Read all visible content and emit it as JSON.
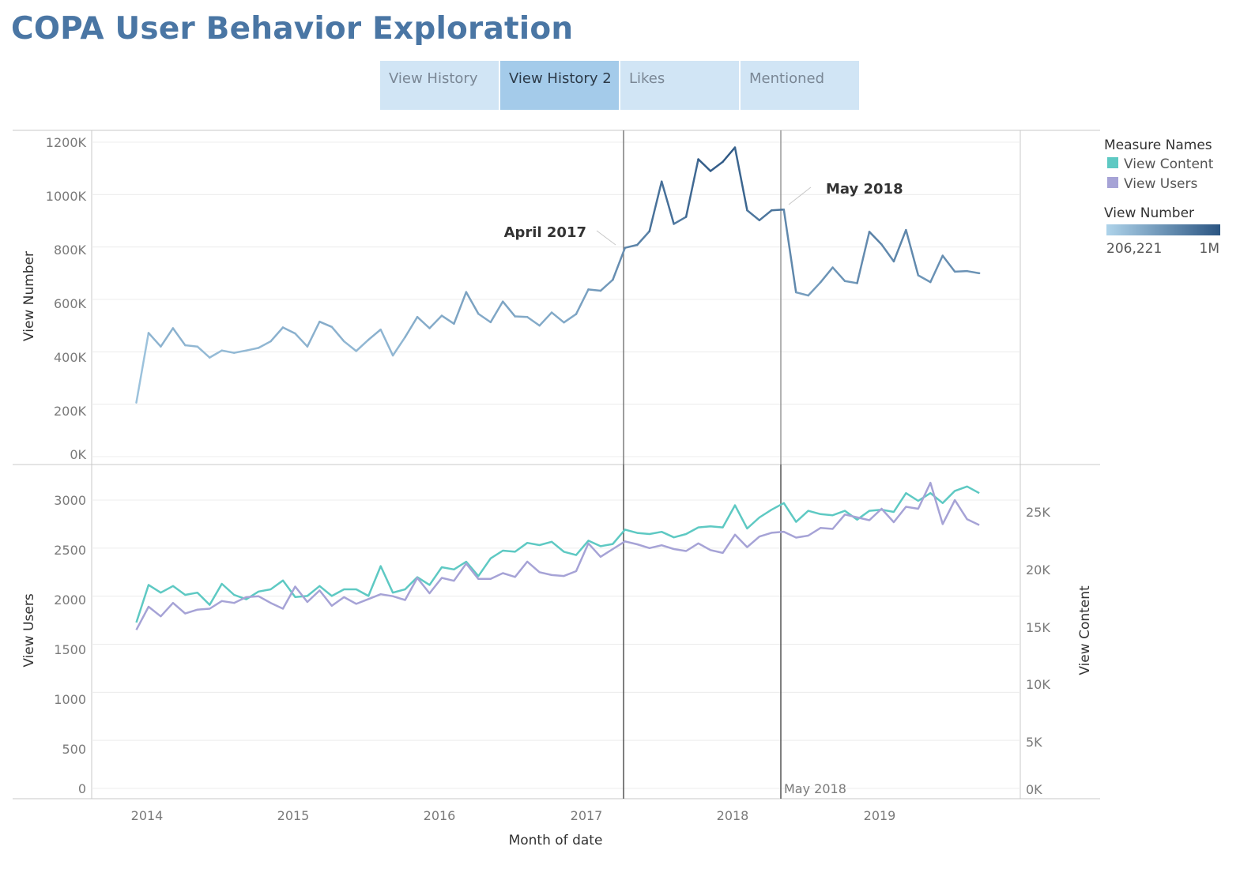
{
  "header": {
    "title": "COPA User Behavior Exploration"
  },
  "tabs": [
    {
      "label": "View History",
      "active": false
    },
    {
      "label": "View History 2",
      "active": true
    },
    {
      "label": "Likes",
      "active": false
    },
    {
      "label": "Mentioned",
      "active": false
    }
  ],
  "colors": {
    "view_content": "#5ec9c3",
    "view_users": "#a6a3d6",
    "low": "#aed3ea",
    "high": "#2b5582"
  },
  "chart_data": [
    {
      "type": "line",
      "ylabel": "View Number",
      "ylim": [
        0,
        1200000
      ],
      "yticks": [
        "1200K",
        "1000K",
        "800K",
        "600K",
        "400K",
        "200K",
        "0K"
      ],
      "x_start": "2013-12",
      "series": [
        {
          "name": "View Number",
          "values": [
            206221,
            472000,
            420000,
            490000,
            425000,
            420000,
            378000,
            405000,
            396000,
            405000,
            415000,
            440000,
            493000,
            470000,
            420000,
            515000,
            495000,
            440000,
            403000,
            446000,
            485000,
            386000,
            456000,
            533000,
            490000,
            538000,
            507000,
            628000,
            545000,
            513000,
            592000,
            535000,
            533000,
            500000,
            550000,
            512000,
            544000,
            638000,
            633000,
            675000,
            797000,
            808000,
            860000,
            1050000,
            888000,
            915000,
            1135000,
            1090000,
            1125000,
            1180000,
            940000,
            902000,
            940000,
            943000,
            627000,
            615000,
            665000,
            722000,
            670000,
            662000,
            858000,
            810000,
            745000,
            865000,
            692000,
            666000,
            767000,
            706000,
            708000,
            700000
          ]
        }
      ],
      "annotations": [
        {
          "label": "April 2017",
          "date": "2017-04"
        },
        {
          "label": "May 2018",
          "date": "2018-05"
        }
      ]
    },
    {
      "type": "line",
      "ylabel": "View Users",
      "y2label": "View Content",
      "ylim": [
        0,
        3300
      ],
      "y2lim": [
        0,
        28500
      ],
      "yticks": [
        "3000",
        "2500",
        "2000",
        "1500",
        "1000",
        "500",
        "0"
      ],
      "y2ticks": [
        "25K",
        "20K",
        "15K",
        "10K",
        "5K",
        "0K"
      ],
      "x_start": "2013-12",
      "xlabel": "Month of date",
      "xticks": [
        "2014",
        "2015",
        "2016",
        "2017",
        "2018",
        "2019"
      ],
      "series": [
        {
          "name": "View Content",
          "axis": "right",
          "values": [
            15000,
            18400,
            17700,
            18300,
            17500,
            17700,
            16600,
            18500,
            17500,
            17100,
            17800,
            18000,
            18800,
            17300,
            17400,
            18300,
            17400,
            18000,
            18000,
            17400,
            20100,
            17700,
            18000,
            19100,
            18400,
            20000,
            19800,
            20500,
            19200,
            20800,
            21500,
            21400,
            22200,
            22000,
            22300,
            21400,
            21100,
            22400,
            21900,
            22100,
            23400,
            23100,
            23000,
            23200,
            22700,
            23000,
            23600,
            23700,
            23600,
            25600,
            23500,
            24500,
            25200,
            25800,
            24100,
            25100,
            24800,
            24700,
            25100,
            24300,
            25100,
            25200,
            25000,
            26700,
            26000,
            26700,
            25800,
            26900,
            27300,
            26700
          ]
        },
        {
          "name": "View Users",
          "axis": "left",
          "values": [
            1650,
            1890,
            1790,
            1930,
            1820,
            1860,
            1870,
            1950,
            1930,
            1990,
            2000,
            1930,
            1870,
            2100,
            1940,
            2060,
            1900,
            1990,
            1920,
            1970,
            2020,
            2000,
            1960,
            2190,
            2030,
            2190,
            2160,
            2340,
            2180,
            2180,
            2240,
            2200,
            2360,
            2250,
            2220,
            2210,
            2260,
            2550,
            2410,
            2490,
            2570,
            2540,
            2500,
            2530,
            2490,
            2470,
            2550,
            2480,
            2450,
            2640,
            2510,
            2620,
            2660,
            2670,
            2610,
            2630,
            2710,
            2700,
            2850,
            2820,
            2790,
            2910,
            2770,
            2930,
            2910,
            3180,
            2750,
            3000,
            2800,
            2740
          ]
        }
      ],
      "annotations": [
        {
          "label": "May 2018",
          "date": "2018-05"
        }
      ]
    }
  ],
  "legend": {
    "measure_title": "Measure Names",
    "items": [
      {
        "label": "View Content"
      },
      {
        "label": "View Users"
      }
    ],
    "gradient_title": "View Number",
    "gradient_min": "206,221",
    "gradient_max": "1M"
  }
}
